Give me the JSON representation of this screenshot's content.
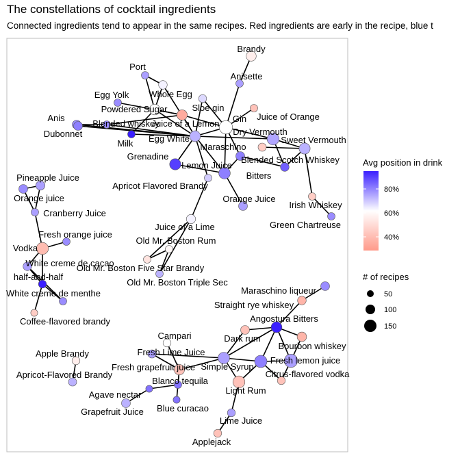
{
  "title": "The constellations of cocktail ingredients",
  "subtitle": "Connected ingredients tend to appear in the same recipes. Red ingredients are early in the recipe, blue t",
  "legend": {
    "color_title": "Avg position in drink",
    "color_ticks": [
      "80%",
      "60%",
      "40%"
    ],
    "size_title": "# of recipes",
    "size_ticks": [
      "50",
      "100",
      "150"
    ]
  },
  "colors": {
    "low": "#ff9a8a",
    "mid": "#ffffff",
    "high": "#3a1fff"
  },
  "nodes": [
    {
      "id": "brandy",
      "label": "Brandy",
      "pos": 0.55,
      "n": 60
    },
    {
      "id": "anisette",
      "label": "Anisette",
      "pos": 0.75,
      "n": 20
    },
    {
      "id": "port",
      "label": "Port",
      "pos": 0.75,
      "n": 20
    },
    {
      "id": "whole_egg",
      "label": "Whole Egg",
      "pos": 0.62,
      "n": 35
    },
    {
      "id": "egg_yolk",
      "label": "Egg Yolk",
      "pos": 0.78,
      "n": 20
    },
    {
      "id": "powdered_sugar",
      "label": "Powdered Sugar",
      "pos": 0.6,
      "n": 75
    },
    {
      "id": "sloe_gin",
      "label": "Sloe gin",
      "pos": 0.66,
      "n": 25
    },
    {
      "id": "juice_lemon",
      "label": "Juice of a Lemon",
      "pos": 0.35,
      "n": 70
    },
    {
      "id": "gin",
      "label": "Gin",
      "pos": 0.6,
      "n": 150
    },
    {
      "id": "juice_orange",
      "label": "Juice of Orange",
      "pos": 0.42,
      "n": 20
    },
    {
      "id": "anis",
      "label": "Anis",
      "pos": 0.78,
      "n": 40
    },
    {
      "id": "blended_whiskey",
      "label": "Blended whiskey",
      "pos": 0.78,
      "n": 20
    },
    {
      "id": "dubonnet",
      "label": "Dubonnet",
      "pos": 0.8,
      "n": 40
    },
    {
      "id": "milk",
      "label": "Milk",
      "pos": 0.95,
      "n": 20
    },
    {
      "id": "egg_white",
      "label": "Egg White",
      "pos": 0.72,
      "n": 80
    },
    {
      "id": "dry_vermouth",
      "label": "Dry Vermouth",
      "pos": 0.74,
      "n": 110
    },
    {
      "id": "sweet_vermouth",
      "label": "Sweet Vermouth",
      "pos": 0.72,
      "n": 85
    },
    {
      "id": "maraschino",
      "label": "Maraschino",
      "pos": 0.8,
      "n": 40
    },
    {
      "id": "blended_scotch",
      "label": "Blended Scotch Whiskey",
      "pos": 0.45,
      "n": 30
    },
    {
      "id": "grenadine",
      "label": "Grenadine",
      "pos": 0.9,
      "n": 90
    },
    {
      "id": "lemon_juice",
      "label": "Lemon Juice",
      "pos": 0.8,
      "n": 95
    },
    {
      "id": "bitters",
      "label": "Bitters",
      "pos": 0.85,
      "n": 35
    },
    {
      "id": "apricot_brandy",
      "label": "Apricot Flavored Brandy",
      "pos": 0.68,
      "n": 20
    },
    {
      "id": "orange_juice",
      "label": "Orange Juice",
      "pos": 0.75,
      "n": 40
    },
    {
      "id": "irish_whiskey",
      "label": "Irish Whiskey",
      "pos": 0.45,
      "n": 20
    },
    {
      "id": "green_chartreuse",
      "label": "Green Chartreuse",
      "pos": 0.78,
      "n": 20
    },
    {
      "id": "pineapple_juice",
      "label": "Pineapple Juice",
      "pos": 0.75,
      "n": 45
    },
    {
      "id": "orange_juice2",
      "label": "Orange juice",
      "pos": 0.78,
      "n": 40
    },
    {
      "id": "cranberry_juice",
      "label": "Cranberry Juice",
      "pos": 0.75,
      "n": 20
    },
    {
      "id": "juice_lime",
      "label": "Juice of a Lime",
      "pos": 0.62,
      "n": 45
    },
    {
      "id": "boston_rum",
      "label": "Old Mr. Boston Rum",
      "pos": 0.52,
      "n": 20
    },
    {
      "id": "fresh_oj",
      "label": "Fresh orange juice",
      "pos": 0.78,
      "n": 20
    },
    {
      "id": "vodka",
      "label": "Vodka",
      "pos": 0.4,
      "n": 110
    },
    {
      "id": "white_cacao",
      "label": "White creme de cacao",
      "pos": 0.75,
      "n": 35
    },
    {
      "id": "five_star",
      "label": "Old Mr. Boston Five Star Brandy",
      "pos": 0.58,
      "n": 20
    },
    {
      "id": "half_half",
      "label": "half-and-half",
      "pos": 0.95,
      "n": 25
    },
    {
      "id": "triple_sec",
      "label": "Old Mr. Boston Triple Sec",
      "pos": 0.72,
      "n": 20
    },
    {
      "id": "white_menthe",
      "label": "White creme de menthe",
      "pos": 0.78,
      "n": 20
    },
    {
      "id": "coffee_brandy",
      "label": "Coffee-flavored brandy",
      "pos": 0.45,
      "n": 15
    },
    {
      "id": "maraschino_liq",
      "label": "Maraschino liqueur",
      "pos": 0.78,
      "n": 40
    },
    {
      "id": "straight_rye",
      "label": "Straight rye whiskey",
      "pos": 0.38,
      "n": 35
    },
    {
      "id": "angostura",
      "label": "Angostura Bitters",
      "pos": 0.95,
      "n": 80
    },
    {
      "id": "dark_rum",
      "label": "Dark rum",
      "pos": 0.42,
      "n": 40
    },
    {
      "id": "bourbon",
      "label": "Bourbon whiskey",
      "pos": 0.38,
      "n": 50
    },
    {
      "id": "campari",
      "label": "Campari",
      "pos": 0.6,
      "n": 25
    },
    {
      "id": "fresh_lime",
      "label": "Fresh Lime Juice",
      "pos": 0.75,
      "n": 30
    },
    {
      "id": "simple_syrup",
      "label": "Simple Syrup",
      "pos": 0.75,
      "n": 100
    },
    {
      "id": "fresh_lemon",
      "label": "Fresh lemon juice",
      "pos": 0.8,
      "n": 120
    },
    {
      "id": "fresh_lemon2",
      "label": "Fresh lemon juice",
      "pos": 0.75,
      "n": 150
    },
    {
      "id": "apple_brandy",
      "label": "Apple Brandy",
      "pos": 0.55,
      "n": 25
    },
    {
      "id": "fresh_grapefruit",
      "label": "Fresh grapefruit juice",
      "pos": 0.42,
      "n": 70
    },
    {
      "id": "citrus_vodka",
      "label": "Citrus-flavored vodka",
      "pos": 0.42,
      "n": 25
    },
    {
      "id": "apricot_brandy2",
      "label": "Apricot-Flavored Brandy",
      "pos": 0.72,
      "n": 30
    },
    {
      "id": "blanco",
      "label": "Blanco tequila",
      "pos": 0.82,
      "n": 20
    },
    {
      "id": "light_rum",
      "label": "Light Rum",
      "pos": 0.42,
      "n": 110
    },
    {
      "id": "agave",
      "label": "Agave nectar",
      "pos": 0.82,
      "n": 15
    },
    {
      "id": "grapefruit_juice",
      "label": "Grapefruit Juice",
      "pos": 0.72,
      "n": 40
    },
    {
      "id": "blue_curacao",
      "label": "Blue curacao",
      "pos": 0.82,
      "n": 15
    },
    {
      "id": "lime_juice",
      "label": "Lime Juice",
      "pos": 0.75,
      "n": 25
    },
    {
      "id": "applejack",
      "label": "Applejack",
      "pos": 0.42,
      "n": 25
    }
  ],
  "edges": [
    [
      "brandy",
      "anisette"
    ],
    [
      "anisette",
      "gin"
    ],
    [
      "port",
      "whole_egg"
    ],
    [
      "port",
      "powdered_sugar"
    ],
    [
      "whole_egg",
      "powdered_sugar"
    ],
    [
      "egg_yolk",
      "powdered_sugar"
    ],
    [
      "powdered_sugar",
      "juice_lemon"
    ],
    [
      "powdered_sugar",
      "egg_white"
    ],
    [
      "powdered_sugar",
      "milk"
    ],
    [
      "whole_egg",
      "egg_white"
    ],
    [
      "juice_lemon",
      "egg_white"
    ],
    [
      "juice_lemon",
      "gin"
    ],
    [
      "juice_lemon",
      "blended_whiskey"
    ],
    [
      "juice_lemon",
      "powdered_sugar"
    ],
    [
      "sloe_gin",
      "egg_white"
    ],
    [
      "sloe_gin",
      "gin"
    ],
    [
      "gin",
      "egg_white"
    ],
    [
      "gin",
      "dry_vermouth"
    ],
    [
      "gin",
      "juice_orange"
    ],
    [
      "gin",
      "maraschino"
    ],
    [
      "anis",
      "blended_whiskey"
    ],
    [
      "blended_whiskey",
      "egg_white"
    ],
    [
      "anis",
      "egg_white"
    ],
    [
      "dubonnet",
      "egg_white"
    ],
    [
      "milk",
      "egg_white"
    ],
    [
      "egg_white",
      "grenadine"
    ],
    [
      "egg_white",
      "lemon_juice"
    ],
    [
      "egg_white",
      "apricot_brandy"
    ],
    [
      "egg_white",
      "dry_vermouth"
    ],
    [
      "dry_vermouth",
      "sweet_vermouth"
    ],
    [
      "sweet_vermouth",
      "blended_scotch"
    ],
    [
      "sweet_vermouth",
      "bitters"
    ],
    [
      "sweet_vermouth",
      "irish_whiskey"
    ],
    [
      "irish_whiskey",
      "green_chartreuse"
    ],
    [
      "dry_vermouth",
      "bitters"
    ],
    [
      "maraschino",
      "lemon_juice"
    ],
    [
      "maraschino",
      "bitters"
    ],
    [
      "gin",
      "lemon_juice"
    ],
    [
      "lemon_juice",
      "orange_juice"
    ],
    [
      "lemon_juice",
      "grenadine"
    ],
    [
      "apricot_brandy",
      "juice_lime"
    ],
    [
      "juice_lime",
      "boston_rum"
    ],
    [
      "boston_rum",
      "five_star"
    ],
    [
      "five_star",
      "triple_sec"
    ],
    [
      "juice_lime",
      "triple_sec"
    ],
    [
      "pineapple_juice",
      "orange_juice2"
    ],
    [
      "pineapple_juice",
      "cranberry_juice"
    ],
    [
      "orange_juice2",
      "cranberry_juice"
    ],
    [
      "cranberry_juice",
      "vodka"
    ],
    [
      "fresh_oj",
      "vodka"
    ],
    [
      "vodka",
      "white_cacao"
    ],
    [
      "vodka",
      "half_half"
    ],
    [
      "white_cacao",
      "half_half"
    ],
    [
      "half_half",
      "white_menthe"
    ],
    [
      "white_cacao",
      "white_menthe"
    ],
    [
      "half_half",
      "coffee_brandy"
    ],
    [
      "maraschino_liq",
      "straight_rye"
    ],
    [
      "straight_rye",
      "angostura"
    ],
    [
      "angostura",
      "dark_rum"
    ],
    [
      "angostura",
      "bourbon"
    ],
    [
      "angostura",
      "fresh_lemon"
    ],
    [
      "angostura",
      "fresh_lemon2"
    ],
    [
      "angostura",
      "simple_syrup"
    ],
    [
      "dark_rum",
      "simple_syrup"
    ],
    [
      "simple_syrup",
      "fresh_lemon"
    ],
    [
      "simple_syrup",
      "light_rum"
    ],
    [
      "simple_syrup",
      "fresh_grapefruit"
    ],
    [
      "fresh_lemon",
      "fresh_lemon2"
    ],
    [
      "fresh_lemon",
      "citrus_vodka"
    ],
    [
      "fresh_lemon2",
      "citrus_vodka"
    ],
    [
      "fresh_lemon",
      "light_rum"
    ],
    [
      "bourbon",
      "fresh_lemon2"
    ],
    [
      "light_rum",
      "lime_juice"
    ],
    [
      "lime_juice",
      "applejack"
    ],
    [
      "campari",
      "fresh_grapefruit"
    ],
    [
      "fresh_lime",
      "fresh_grapefruit"
    ],
    [
      "fresh_grapefruit",
      "blanco"
    ],
    [
      "fresh_grapefruit",
      "blue_curacao"
    ],
    [
      "blanco",
      "agave"
    ],
    [
      "agave",
      "grapefruit_juice"
    ],
    [
      "apple_brandy",
      "apricot_brandy2"
    ],
    [
      "fresh_lime",
      "simple_syrup"
    ]
  ]
}
